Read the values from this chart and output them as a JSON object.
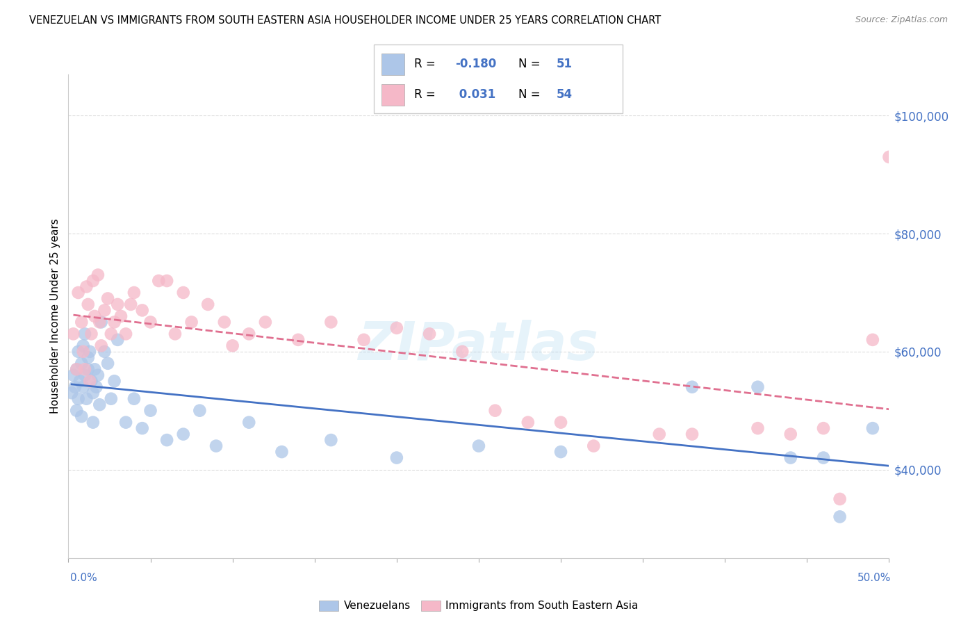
{
  "title": "VENEZUELAN VS IMMIGRANTS FROM SOUTH EASTERN ASIA HOUSEHOLDER INCOME UNDER 25 YEARS CORRELATION CHART",
  "source": "Source: ZipAtlas.com",
  "ylabel": "Householder Income Under 25 years",
  "legend_label1": "Venezuelans",
  "legend_label2": "Immigrants from South Eastern Asia",
  "r1": -0.18,
  "n1": 51,
  "r2": 0.031,
  "n2": 54,
  "color_blue": "#adc6e8",
  "color_pink": "#f5b8c8",
  "line_color_blue": "#4472c4",
  "line_color_pink": "#e07090",
  "yaxis_labels": [
    "$40,000",
    "$60,000",
    "$80,000",
    "$100,000"
  ],
  "yaxis_values": [
    40000,
    60000,
    80000,
    100000
  ],
  "ylim": [
    25000,
    107000
  ],
  "xlim": [
    0.0,
    0.5
  ],
  "watermark": "ZIPatlas",
  "blue_x": [
    0.002,
    0.003,
    0.004,
    0.005,
    0.005,
    0.006,
    0.006,
    0.007,
    0.008,
    0.008,
    0.009,
    0.009,
    0.01,
    0.01,
    0.011,
    0.012,
    0.012,
    0.013,
    0.014,
    0.015,
    0.015,
    0.016,
    0.017,
    0.018,
    0.019,
    0.02,
    0.022,
    0.024,
    0.026,
    0.028,
    0.03,
    0.035,
    0.04,
    0.045,
    0.05,
    0.06,
    0.07,
    0.08,
    0.09,
    0.11,
    0.13,
    0.16,
    0.2,
    0.25,
    0.3,
    0.38,
    0.42,
    0.44,
    0.46,
    0.47,
    0.49
  ],
  "blue_y": [
    53000,
    56000,
    54000,
    57000,
    50000,
    60000,
    52000,
    55000,
    58000,
    49000,
    54000,
    61000,
    56000,
    63000,
    52000,
    57000,
    59000,
    60000,
    55000,
    53000,
    48000,
    57000,
    54000,
    56000,
    51000,
    65000,
    60000,
    58000,
    52000,
    55000,
    62000,
    48000,
    52000,
    47000,
    50000,
    45000,
    46000,
    50000,
    44000,
    48000,
    43000,
    45000,
    42000,
    44000,
    43000,
    54000,
    54000,
    42000,
    42000,
    32000,
    47000
  ],
  "pink_x": [
    0.003,
    0.005,
    0.006,
    0.008,
    0.009,
    0.01,
    0.011,
    0.012,
    0.013,
    0.014,
    0.015,
    0.016,
    0.018,
    0.019,
    0.02,
    0.022,
    0.024,
    0.026,
    0.028,
    0.03,
    0.032,
    0.035,
    0.038,
    0.04,
    0.045,
    0.05,
    0.055,
    0.06,
    0.065,
    0.07,
    0.075,
    0.085,
    0.095,
    0.1,
    0.11,
    0.12,
    0.14,
    0.16,
    0.18,
    0.2,
    0.22,
    0.24,
    0.26,
    0.28,
    0.3,
    0.32,
    0.36,
    0.38,
    0.42,
    0.44,
    0.46,
    0.47,
    0.49,
    0.5
  ],
  "pink_y": [
    63000,
    57000,
    70000,
    65000,
    60000,
    57000,
    71000,
    68000,
    55000,
    63000,
    72000,
    66000,
    73000,
    65000,
    61000,
    67000,
    69000,
    63000,
    65000,
    68000,
    66000,
    63000,
    68000,
    70000,
    67000,
    65000,
    72000,
    72000,
    63000,
    70000,
    65000,
    68000,
    65000,
    61000,
    63000,
    65000,
    62000,
    65000,
    62000,
    64000,
    63000,
    60000,
    50000,
    48000,
    48000,
    44000,
    46000,
    46000,
    47000,
    46000,
    47000,
    35000,
    62000,
    93000
  ]
}
